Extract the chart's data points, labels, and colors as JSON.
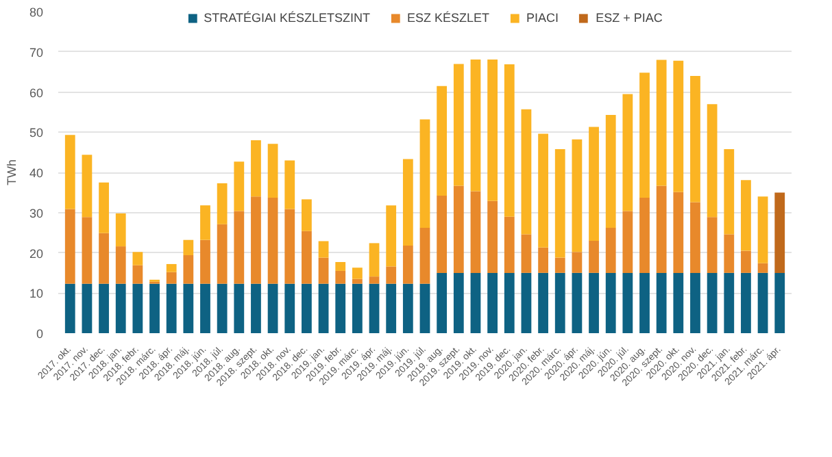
{
  "chart_data": {
    "type": "bar",
    "stacked": true,
    "ylabel": "TWh",
    "ylim": [
      0,
      80
    ],
    "yticks": [
      0,
      10,
      20,
      30,
      40,
      50,
      60,
      70,
      80
    ],
    "grid": "y",
    "legend": "top",
    "categories": [
      "2017. okt.",
      "2017. nov.",
      "2017. dec.",
      "2018. jan.",
      "2018. febr.",
      "2018. márc.",
      "2018. ápr.",
      "2018. máj.",
      "2018. jún.",
      "2018. júl.",
      "2018. aug.",
      "2018. szept.",
      "2018. okt.",
      "2018. nov.",
      "2018. dec.",
      "2019. jan.",
      "2019. febr.",
      "2019. márc.",
      "2019. ápr.",
      "2019. máj.",
      "2019. jún.",
      "2019. júl.",
      "2019. aug.",
      "2019. szept.",
      "2019. okt.",
      "2019. nov.",
      "2019. dec.",
      "2020. jan.",
      "2020. febr.",
      "2020. márc.",
      "2020. ápr.",
      "2020. máj.",
      "2020. jún.",
      "2020. júl.",
      "2020. aug.",
      "2020. szept.",
      "2020. okt.",
      "2020. nov.",
      "2020. dec.",
      "2021. jan.",
      "2021. febr.",
      "2021. márc.",
      "2021. ápr."
    ],
    "series": [
      {
        "name": "STRATÉGIAI KÉSZLETSZINT",
        "color": "#0e6283",
        "values": [
          12.3,
          12.3,
          12.3,
          12.3,
          12.3,
          12.3,
          12.3,
          12.3,
          12.3,
          12.3,
          12.3,
          12.3,
          12.3,
          12.3,
          12.3,
          12.3,
          12.3,
          12.3,
          12.3,
          12.3,
          12.3,
          12.3,
          15,
          15,
          15,
          15,
          15,
          15,
          15,
          15,
          15,
          15,
          15,
          15,
          15,
          15,
          15,
          15,
          15,
          15,
          15,
          15,
          15
        ]
      },
      {
        "name": "ESZ KÉSZLET",
        "color": "#e8892b",
        "values": [
          18.6,
          16.6,
          12.6,
          9.3,
          4.6,
          0.5,
          2.9,
          7.1,
          10.9,
          14.8,
          18.1,
          21.7,
          21.4,
          18.6,
          13.1,
          6.5,
          3.2,
          1.2,
          1.8,
          4.3,
          9.5,
          13.9,
          19.2,
          21.7,
          20.3,
          17.9,
          14.0,
          9.6,
          6.3,
          3.8,
          5.2,
          8.0,
          11.2,
          15.4,
          18.7,
          21.7,
          20.1,
          17.6,
          13.9,
          9.6,
          5.5,
          2.4,
          null
        ]
      },
      {
        "name": "PIACI",
        "color": "#fbb423",
        "values": [
          18.4,
          15.5,
          12.6,
          8.2,
          3.3,
          0.5,
          2.0,
          3.8,
          8.6,
          10.2,
          12.3,
          14.0,
          13.4,
          12.1,
          7.9,
          4.1,
          2.2,
          2.8,
          8.3,
          15.2,
          21.5,
          27.0,
          27.3,
          30.3,
          32.8,
          35.2,
          37.9,
          31.1,
          28.3,
          27.0,
          28.0,
          28.3,
          28.1,
          29.1,
          31.1,
          31.3,
          32.7,
          31.4,
          28.1,
          21.2,
          17.6,
          16.6,
          null
        ]
      },
      {
        "name": "ESZ + PIAC",
        "color": "#c0691b",
        "values": [
          null,
          null,
          null,
          null,
          null,
          null,
          null,
          null,
          null,
          null,
          null,
          null,
          null,
          null,
          null,
          null,
          null,
          null,
          null,
          null,
          null,
          null,
          null,
          null,
          null,
          null,
          null,
          null,
          null,
          null,
          null,
          null,
          null,
          null,
          null,
          null,
          null,
          null,
          null,
          null,
          null,
          null,
          20.0
        ]
      }
    ]
  }
}
